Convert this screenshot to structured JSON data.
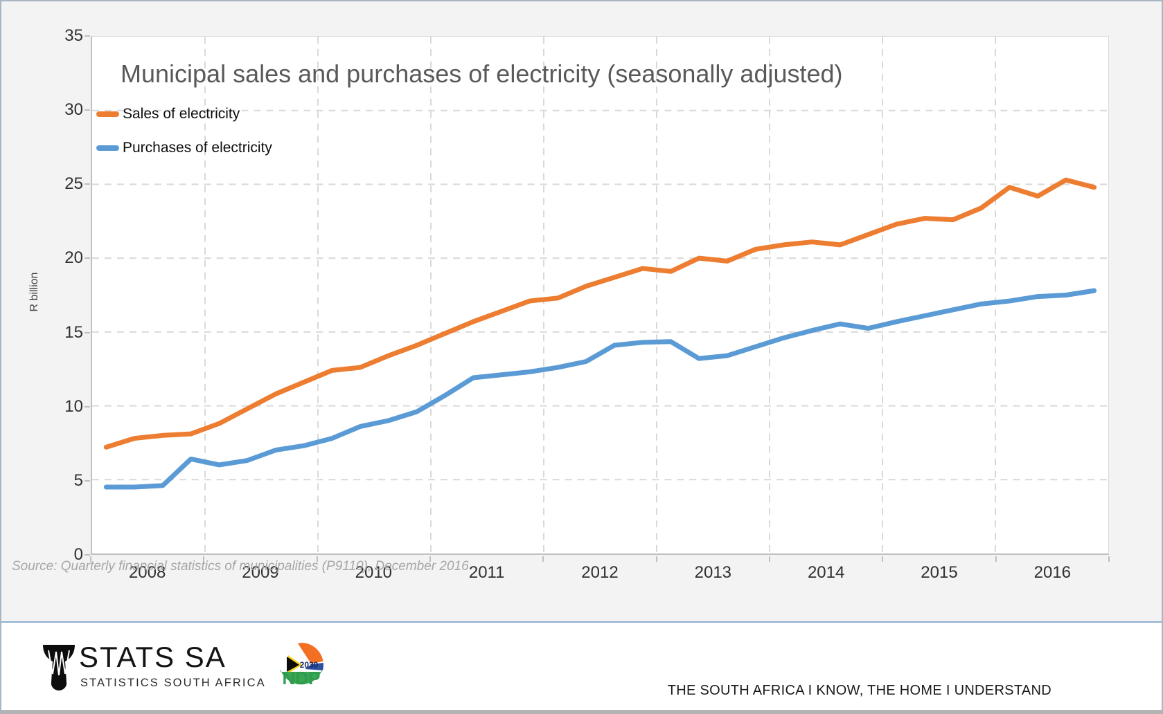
{
  "title": "Municipal sales and purchases of electricity (seasonally adjusted)",
  "y_axis_title": "R billion",
  "source_note": "Source: Quarterly financial statistics of municipalities (P9110), December 2016",
  "legend": {
    "sales_label": "Sales of electricity",
    "purchases_label": "Purchases of electricity"
  },
  "colors": {
    "sales": "#ED7D31",
    "purchases": "#5B9BD5",
    "gridline": "#d9d9d9",
    "axis": "#bfbfbf"
  },
  "footer": {
    "logo_name": "STATS SA",
    "logo_sub": "STATISTICS SOUTH AFRICA",
    "ndp_label": "NDP",
    "ndp_year": "2030",
    "slogan": "THE SOUTH AFRICA I KNOW, THE HOME I UNDERSTAND"
  },
  "chart_data": {
    "type": "line",
    "title": "Municipal sales and purchases of electricity (seasonally adjusted)",
    "xlabel": "",
    "ylabel": "R billion",
    "ylim": [
      0,
      35
    ],
    "y_ticks": [
      0,
      5,
      10,
      15,
      20,
      25,
      30,
      35
    ],
    "x_year_labels": [
      "2008",
      "2009",
      "2010",
      "2011",
      "2012",
      "2013",
      "2014",
      "2015",
      "2016"
    ],
    "grid": "dashed",
    "legend_position": "top-left-inside",
    "quarters": [
      "2008Q1",
      "2008Q2",
      "2008Q3",
      "2008Q4",
      "2009Q1",
      "2009Q2",
      "2009Q3",
      "2009Q4",
      "2010Q1",
      "2010Q2",
      "2010Q3",
      "2010Q4",
      "2011Q1",
      "2011Q2",
      "2011Q3",
      "2011Q4",
      "2012Q1",
      "2012Q2",
      "2012Q3",
      "2012Q4",
      "2013Q1",
      "2013Q2",
      "2013Q3",
      "2013Q4",
      "2014Q1",
      "2014Q2",
      "2014Q3",
      "2014Q4",
      "2015Q1",
      "2015Q2",
      "2015Q3",
      "2015Q4",
      "2016Q1",
      "2016Q2",
      "2016Q3",
      "2016Q4"
    ],
    "series": [
      {
        "name": "Sales of electricity",
        "color": "#ED7D31",
        "values": [
          7.2,
          7.8,
          8.0,
          8.1,
          8.8,
          9.8,
          10.8,
          11.6,
          12.4,
          12.6,
          13.4,
          14.1,
          14.9,
          15.7,
          16.4,
          17.1,
          17.3,
          18.1,
          18.7,
          19.3,
          19.1,
          20.0,
          19.8,
          20.6,
          20.9,
          21.1,
          20.9,
          21.6,
          22.3,
          22.7,
          22.6,
          23.4,
          24.8,
          24.2,
          25.3,
          24.8
        ]
      },
      {
        "name": "Purchases of electricity",
        "color": "#5B9BD5",
        "values": [
          4.5,
          4.5,
          4.6,
          6.4,
          6.0,
          6.3,
          7.0,
          7.3,
          7.8,
          8.6,
          9.0,
          9.6,
          10.7,
          11.9,
          12.1,
          12.3,
          12.6,
          13.0,
          14.1,
          14.3,
          14.35,
          13.2,
          13.4,
          14.0,
          14.6,
          15.1,
          15.55,
          15.25,
          15.7,
          16.1,
          16.5,
          16.9,
          17.1,
          17.4,
          17.5,
          17.8
        ]
      }
    ]
  }
}
